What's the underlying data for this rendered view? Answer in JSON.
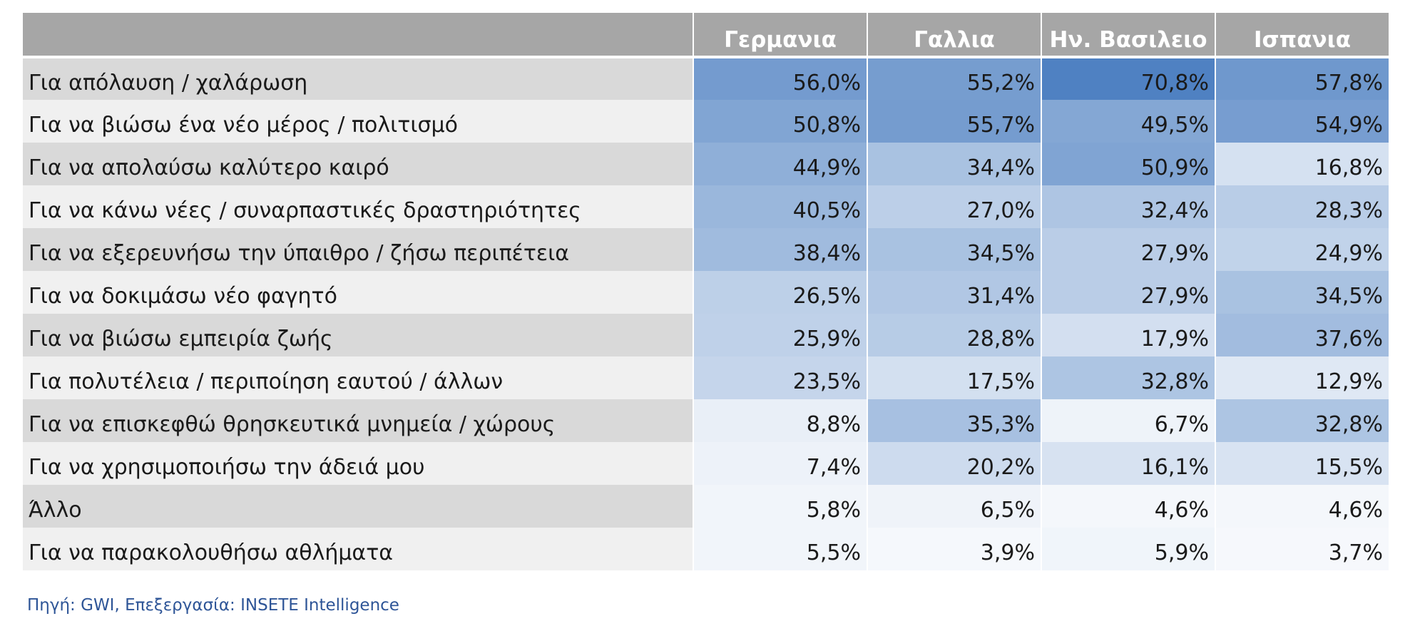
{
  "chart_data": {
    "type": "table",
    "columns": [
      "Γερμανια",
      "Γαλλια",
      "Ην. Βασιλειο",
      "Ισπανια"
    ],
    "rows": [
      {
        "label": "Για απόλαυση / χαλάρωση",
        "values": [
          56.0,
          55.2,
          70.8,
          57.8
        ],
        "display": [
          "56,0%",
          "55,2%",
          "70,8%",
          "57,8%"
        ]
      },
      {
        "label": "Για να βιώσω ένα νέο μέρος / πολιτισμό",
        "values": [
          50.8,
          55.7,
          49.5,
          54.9
        ],
        "display": [
          "50,8%",
          "55,7%",
          "49,5%",
          "54,9%"
        ]
      },
      {
        "label": "Για να απολαύσω καλύτερο καιρό",
        "values": [
          44.9,
          34.4,
          50.9,
          16.8
        ],
        "display": [
          "44,9%",
          "34,4%",
          "50,9%",
          "16,8%"
        ]
      },
      {
        "label": "Για να κάνω νέες / συναρπαστικές δραστηριότητες",
        "values": [
          40.5,
          27.0,
          32.4,
          28.3
        ],
        "display": [
          "40,5%",
          "27,0%",
          "32,4%",
          "28,3%"
        ]
      },
      {
        "label": "Για να εξερευνήσω την ύπαιθρο / ζήσω περιπέτεια",
        "values": [
          38.4,
          34.5,
          27.9,
          24.9
        ],
        "display": [
          "38,4%",
          "34,5%",
          "27,9%",
          "24,9%"
        ]
      },
      {
        "label": "Για να δοκιμάσω νέο φαγητό",
        "values": [
          26.5,
          31.4,
          27.9,
          34.5
        ],
        "display": [
          "26,5%",
          "31,4%",
          "27,9%",
          "34,5%"
        ]
      },
      {
        "label": "Για να βιώσω εμπειρία ζωής",
        "values": [
          25.9,
          28.8,
          17.9,
          37.6
        ],
        "display": [
          "25,9%",
          "28,8%",
          "17,9%",
          "37,6%"
        ]
      },
      {
        "label": "Για πολυτέλεια / περιποίηση εαυτού / άλλων",
        "values": [
          23.5,
          17.5,
          32.8,
          12.9
        ],
        "display": [
          "23,5%",
          "17,5%",
          "32,8%",
          "12,9%"
        ]
      },
      {
        "label": "Για να επισκεφθώ θρησκευτικά μνημεία / χώρους",
        "values": [
          8.8,
          35.3,
          6.7,
          32.8
        ],
        "display": [
          "8,8%",
          "35,3%",
          "6,7%",
          "32,8%"
        ]
      },
      {
        "label": "Για να χρησιμοποιήσω την άδειά μου",
        "values": [
          7.4,
          20.2,
          16.1,
          15.5
        ],
        "display": [
          "7,4%",
          "20,2%",
          "16,1%",
          "15,5%"
        ]
      },
      {
        "label": "Άλλο",
        "values": [
          5.8,
          6.5,
          4.6,
          4.6
        ],
        "display": [
          "5,8%",
          "6,5%",
          "4,6%",
          "4,6%"
        ]
      },
      {
        "label": "Για να παρακολουθήσω αθλήματα",
        "values": [
          5.5,
          3.9,
          5.9,
          3.7
        ],
        "display": [
          "5,5%",
          "3,9%",
          "5,9%",
          "3,7%"
        ]
      }
    ],
    "heatmap_colors": {
      "low": "#ffffff",
      "high": "#4f81c2"
    }
  },
  "source": "Πηγή: GWI, Επεξεργασία: INSETE Intelligence"
}
